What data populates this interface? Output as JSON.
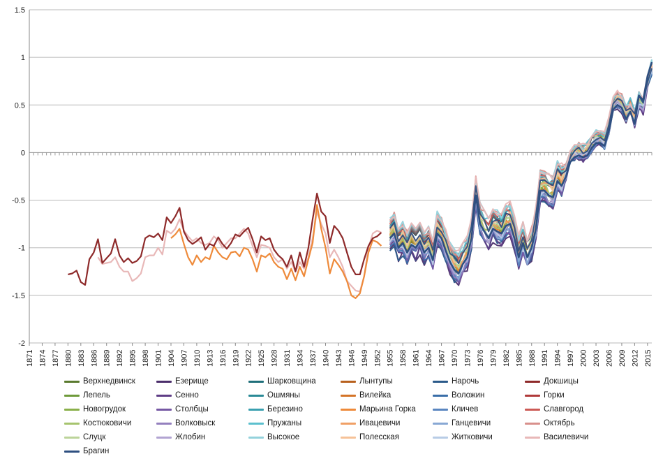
{
  "chart_data": {
    "type": "line",
    "title": "",
    "xlabel": "",
    "ylabel": "",
    "ylim": [
      -2,
      1.5
    ],
    "yticks": [
      "1.5",
      "1",
      "0.5",
      "0",
      "-0.5",
      "-1",
      "-1.5",
      "-2"
    ],
    "xlim": [
      1871,
      2016
    ],
    "xtick_labels": [
      "1871",
      "1874",
      "1877",
      "1880",
      "1883",
      "1886",
      "1889",
      "1892",
      "1895",
      "1898",
      "1901",
      "1904",
      "1907",
      "1910",
      "1913",
      "1916",
      "1919",
      "1922",
      "1925",
      "1928",
      "1931",
      "1934",
      "1937",
      "1940",
      "1943",
      "1946",
      "1949",
      "1952",
      "1955",
      "1958",
      "1961",
      "1964",
      "1967",
      "1970",
      "1973",
      "1976",
      "1979",
      "1982",
      "1985",
      "1988",
      "1991",
      "1994",
      "1997",
      "2000",
      "2003",
      "2006",
      "2009",
      "2012",
      "2015"
    ],
    "grid": "horizontal",
    "legend_position": "bottom",
    "series": [
      {
        "name": "Верхнедвинск",
        "color": "#5a7a2e"
      },
      {
        "name": "Езерище",
        "color": "#4b2e6b"
      },
      {
        "name": "Шарковщина",
        "color": "#1f6f7a"
      },
      {
        "name": "Лынтупы",
        "color": "#b8611e"
      },
      {
        "name": "Нарочь",
        "color": "#2b5a8a"
      },
      {
        "name": "Докшицы",
        "color": "#8e2a2a"
      },
      {
        "name": "Лепель",
        "color": "#6e9a3a"
      },
      {
        "name": "Сенно",
        "color": "#5f3d86"
      },
      {
        "name": "Ошмяны",
        "color": "#2a8a96"
      },
      {
        "name": "Вилейка",
        "color": "#d47428"
      },
      {
        "name": "Воложин",
        "color": "#3a6ea8"
      },
      {
        "name": "Горки",
        "color": "#b03a3a"
      },
      {
        "name": "Новогрудок",
        "color": "#8ab04a"
      },
      {
        "name": "Столбцы",
        "color": "#7658a4"
      },
      {
        "name": "Березино",
        "color": "#3aa0b0"
      },
      {
        "name": "Марьина Горка",
        "color": "#ee8a3a"
      },
      {
        "name": "Кличев",
        "color": "#5a86c0"
      },
      {
        "name": "Славгород",
        "color": "#cc5a55"
      },
      {
        "name": "Костюковичи",
        "color": "#a6c46e"
      },
      {
        "name": "Волковыск",
        "color": "#9480be"
      },
      {
        "name": "Пружаны",
        "color": "#5cc0ce"
      },
      {
        "name": "Ивацевичи",
        "color": "#f0a066"
      },
      {
        "name": "Ганцевичи",
        "color": "#88a8d4"
      },
      {
        "name": "Октябрь",
        "color": "#d8908c"
      },
      {
        "name": "Слуцк",
        "color": "#bcd49a"
      },
      {
        "name": "Жлобин",
        "color": "#b2a4d2"
      },
      {
        "name": "Высокое",
        "color": "#94d2dc"
      },
      {
        "name": "Полесская",
        "color": "#f6c298"
      },
      {
        "name": "Житковичи",
        "color": "#b8cce6"
      },
      {
        "name": "Василевичи",
        "color": "#e8b8b8"
      },
      {
        "name": "Брагин",
        "color": "#2e4f80"
      }
    ],
    "reference_series": {
      "Докшицы": {
        "x": [
          1880,
          1881,
          1882,
          1883,
          1884,
          1885,
          1886,
          1887,
          1888,
          1889,
          1890,
          1891,
          1892,
          1893,
          1894,
          1895,
          1896,
          1897,
          1898,
          1899,
          1900,
          1901,
          1902,
          1903,
          1904,
          1905,
          1906,
          1907,
          1908,
          1909,
          1910,
          1911,
          1912,
          1913,
          1914,
          1915,
          1916,
          1917,
          1918,
          1919,
          1920,
          1921,
          1922,
          1923,
          1924,
          1925,
          1926,
          1927,
          1928,
          1929,
          1930,
          1931,
          1932,
          1933,
          1934,
          1935,
          1936,
          1937,
          1938,
          1939,
          1940,
          1941,
          1942,
          1943,
          1944,
          1945,
          1946,
          1947,
          1948,
          1949,
          1950,
          1951,
          1952,
          1953
        ],
        "y": [
          -1.28,
          -1.27,
          -1.24,
          -1.36,
          -1.39,
          -1.12,
          -1.05,
          -0.91,
          -1.16,
          -1.11,
          -1.06,
          -0.91,
          -1.08,
          -1.15,
          -1.11,
          -1.16,
          -1.14,
          -1.09,
          -0.9,
          -0.87,
          -0.89,
          -0.85,
          -0.92,
          -0.68,
          -0.74,
          -0.67,
          -0.58,
          -0.83,
          -0.92,
          -0.96,
          -0.93,
          -0.89,
          -1.02,
          -0.96,
          -0.98,
          -0.89,
          -0.96,
          -1.01,
          -0.95,
          -0.86,
          -0.88,
          -0.83,
          -0.79,
          -0.91,
          -1.05,
          -0.88,
          -0.92,
          -0.9,
          -1.02,
          -1.08,
          -1.12,
          -1.2,
          -1.08,
          -1.25,
          -1.05,
          -1.2,
          -1.0,
          -0.7,
          -0.43,
          -0.62,
          -0.67,
          -0.95,
          -0.77,
          -0.82,
          -0.9,
          -1.05,
          -1.2,
          -1.28,
          -1.28,
          -1.12,
          -0.98,
          -0.9,
          -0.88,
          -0.84
        ]
      },
      "Марьина Горка": {
        "x": [
          1904,
          1905,
          1906,
          1907,
          1908,
          1909,
          1910,
          1911,
          1912,
          1913,
          1914,
          1915,
          1916,
          1917,
          1918,
          1919,
          1920,
          1921,
          1922,
          1923,
          1924,
          1925,
          1926,
          1927,
          1928,
          1929,
          1930,
          1931,
          1932,
          1933,
          1934,
          1935,
          1936,
          1937,
          1938,
          1939,
          1940,
          1941,
          1942,
          1943,
          1944,
          1945,
          1946,
          1947,
          1948,
          1949,
          1950,
          1951,
          1952,
          1953
        ],
        "y": [
          -0.9,
          -0.86,
          -0.8,
          -0.96,
          -1.1,
          -1.18,
          -1.08,
          -1.15,
          -1.1,
          -1.12,
          -0.98,
          -1.05,
          -1.1,
          -1.12,
          -1.05,
          -1.04,
          -1.09,
          -1.0,
          -1.02,
          -1.12,
          -1.25,
          -1.08,
          -1.1,
          -1.06,
          -1.15,
          -1.2,
          -1.22,
          -1.33,
          -1.22,
          -1.34,
          -1.2,
          -1.3,
          -1.12,
          -0.95,
          -0.55,
          -0.8,
          -1.0,
          -1.27,
          -1.12,
          -1.18,
          -1.25,
          -1.35,
          -1.5,
          -1.53,
          -1.48,
          -1.3,
          -1.05,
          -0.92,
          -0.94,
          -0.98
        ]
      },
      "Василевичи": {
        "x": [
          1887,
          1888,
          1889,
          1890,
          1891,
          1892,
          1893,
          1894,
          1895,
          1896,
          1897,
          1898,
          1899,
          1900,
          1901,
          1902,
          1903,
          1904,
          1905,
          1906,
          1907,
          1908,
          1909,
          1910,
          1911,
          1912,
          1913,
          1914,
          1915,
          1916,
          1917,
          1918,
          1919,
          1920,
          1921,
          1922,
          1923,
          1924,
          1925,
          1926,
          1927,
          1928,
          1929,
          1930,
          1931,
          1932,
          1933,
          1934,
          1935,
          1936,
          1937,
          1938,
          1939,
          1940,
          1941,
          1942,
          1943,
          1944,
          1945,
          1946,
          1947,
          1948,
          1949,
          1950,
          1951,
          1952,
          1953
        ],
        "y": [
          -1.1,
          -1.17,
          -1.16,
          -1.15,
          -1.1,
          -1.2,
          -1.25,
          -1.25,
          -1.35,
          -1.32,
          -1.27,
          -1.1,
          -1.08,
          -1.08,
          -1.0,
          -1.07,
          -0.82,
          -0.85,
          -0.8,
          -0.7,
          -0.82,
          -0.88,
          -0.93,
          -0.9,
          -0.95,
          -0.97,
          -0.95,
          -0.88,
          -0.92,
          -1.0,
          -0.95,
          -0.9,
          -0.9,
          -0.85,
          -0.8,
          -0.85,
          -0.98,
          -1.1,
          -0.97,
          -0.98,
          -1.0,
          -1.1,
          -1.15,
          -1.12,
          -1.22,
          -1.15,
          -1.25,
          -1.15,
          -1.22,
          -1.1,
          -0.9,
          -0.62,
          -0.75,
          -0.85,
          -1.1,
          -1.02,
          -1.1,
          -1.2,
          -1.35,
          -1.4,
          -1.45,
          -1.46,
          -1.3,
          -1.0,
          -0.85,
          -0.82,
          -0.84
        ]
      },
      "Группа_станций": {
        "x": [
          1955,
          1956,
          1957,
          1958,
          1959,
          1960,
          1961,
          1962,
          1963,
          1964,
          1965,
          1966,
          1967,
          1968,
          1969,
          1970,
          1971,
          1972,
          1973,
          1974,
          1975,
          1976,
          1977,
          1978,
          1979,
          1980,
          1981,
          1982,
          1983,
          1984,
          1985,
          1986,
          1987,
          1988,
          1989,
          1990,
          1991,
          1992,
          1993,
          1994,
          1995,
          1996,
          1997,
          1998,
          1999,
          2000,
          2001,
          2002,
          2003,
          2004,
          2005,
          2006,
          2007,
          2008,
          2009,
          2010,
          2011,
          2012,
          2013,
          2014,
          2015,
          2016
        ],
        "y": [
          -0.85,
          -0.8,
          -0.95,
          -0.9,
          -1.0,
          -0.92,
          -0.95,
          -0.88,
          -1.0,
          -0.95,
          -1.08,
          -0.8,
          -0.85,
          -0.98,
          -1.1,
          -1.18,
          -1.22,
          -1.12,
          -1.05,
          -0.85,
          -0.4,
          -0.7,
          -0.78,
          -0.85,
          -0.75,
          -0.78,
          -0.8,
          -0.72,
          -0.7,
          -0.85,
          -1.05,
          -0.9,
          -1.05,
          -0.95,
          -0.75,
          -0.35,
          -0.35,
          -0.4,
          -0.42,
          -0.25,
          -0.3,
          -0.2,
          -0.05,
          0.0,
          0.02,
          0.0,
          0.02,
          0.1,
          0.15,
          0.15,
          0.12,
          0.28,
          0.5,
          0.55,
          0.52,
          0.4,
          0.48,
          0.35,
          0.55,
          0.5,
          0.75,
          0.9
        ]
      }
    }
  },
  "legend": [
    "Верхнедвинск",
    "Езерище",
    "Шарковщина",
    "Лынтупы",
    "Нарочь",
    "Докшицы",
    "Лепель",
    "Сенно",
    "Ошмяны",
    "Вилейка",
    "Воложин",
    "Горки",
    "Новогрудок",
    "Столбцы",
    "Березино",
    "Марьина Горка",
    "Кличев",
    "Славгород",
    "Костюковичи",
    "Волковыск",
    "Пружаны",
    "Ивацевичи",
    "Ганцевичи",
    "Октябрь",
    "Слуцк",
    "Жлобин",
    "Высокое",
    "Полесская",
    "Житковичи",
    "Василевичи",
    "Брагин"
  ]
}
